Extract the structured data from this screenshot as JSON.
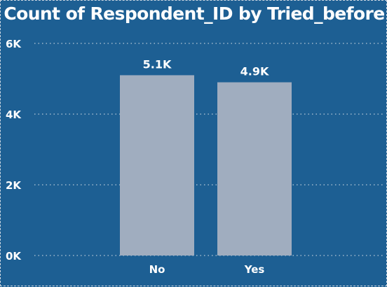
{
  "chart_data": {
    "type": "bar",
    "title": "Count of Respondent_ID by Tried_before",
    "xlabel": "",
    "ylabel": "",
    "categories": [
      "No",
      "Yes"
    ],
    "values": [
      5100,
      4900
    ],
    "data_labels": [
      "5.1K",
      "4.9K"
    ],
    "ylim": [
      0,
      6000
    ],
    "yticks": [
      0,
      2000,
      4000,
      6000
    ],
    "ytick_labels": [
      "0K",
      "2K",
      "4K",
      "6K"
    ],
    "grid": true,
    "legend": "none",
    "colors": {
      "background": "#1d5f93",
      "bar": "#a0adbf",
      "text": "#ffffff",
      "grid": "#b9c9d8"
    }
  }
}
